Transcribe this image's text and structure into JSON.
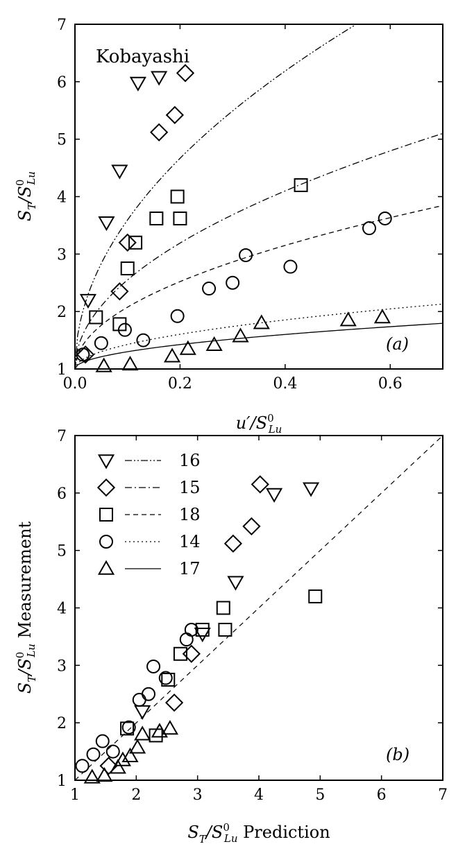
{
  "chart_data": [
    {
      "panel": "(a)",
      "type": "scatter",
      "annotation": "Kobayashi",
      "xlabel": "u′/S⁰Lu",
      "ylabel": "ST/S⁰Lu",
      "xlim": [
        0,
        0.7
      ],
      "ylim": [
        1,
        7
      ],
      "xticks": [
        "0.0",
        "0.2",
        "0.4",
        "0.6"
      ],
      "yticks": [
        "1",
        "2",
        "3",
        "4",
        "5",
        "6",
        "7"
      ],
      "series": [
        {
          "name": "16",
          "marker": "triangle-down",
          "line": "dash-dot-dot",
          "coef": 8.2,
          "points": [
            [
              0.025,
              2.2
            ],
            [
              0.06,
              3.55
            ],
            [
              0.085,
              4.45
            ],
            [
              0.12,
              5.98
            ],
            [
              0.16,
              6.08
            ]
          ]
        },
        {
          "name": "15",
          "marker": "diamond",
          "line": "dash-dot",
          "coef": 4.9,
          "points": [
            [
              0.02,
              1.25
            ],
            [
              0.085,
              2.35
            ],
            [
              0.1,
              3.2
            ],
            [
              0.16,
              5.12
            ],
            [
              0.19,
              5.42
            ],
            [
              0.21,
              6.15
            ]
          ]
        },
        {
          "name": "18",
          "marker": "square",
          "line": "dashed",
          "coef": 3.4,
          "points": [
            [
              0.04,
              1.9
            ],
            [
              0.085,
              1.78
            ],
            [
              0.1,
              2.75
            ],
            [
              0.115,
              3.2
            ],
            [
              0.155,
              3.62
            ],
            [
              0.195,
              4.0
            ],
            [
              0.2,
              3.62
            ],
            [
              0.43,
              4.2
            ]
          ]
        },
        {
          "name": "14",
          "marker": "circle",
          "line": "dotted",
          "coef": 1.35,
          "points": [
            [
              0.015,
              1.25
            ],
            [
              0.05,
              1.45
            ],
            [
              0.095,
              1.68
            ],
            [
              0.13,
              1.5
            ],
            [
              0.195,
              1.92
            ],
            [
              0.255,
              2.4
            ],
            [
              0.3,
              2.5
            ],
            [
              0.325,
              2.98
            ],
            [
              0.41,
              2.78
            ],
            [
              0.56,
              3.45
            ],
            [
              0.59,
              3.62
            ]
          ]
        },
        {
          "name": "17",
          "marker": "triangle-up",
          "line": "solid",
          "coef": 0.95,
          "points": [
            [
              0.055,
              1.05
            ],
            [
              0.105,
              1.08
            ],
            [
              0.185,
              1.22
            ],
            [
              0.215,
              1.35
            ],
            [
              0.265,
              1.42
            ],
            [
              0.315,
              1.57
            ],
            [
              0.355,
              1.8
            ],
            [
              0.52,
              1.85
            ],
            [
              0.585,
              1.9
            ]
          ]
        }
      ]
    },
    {
      "panel": "(b)",
      "type": "scatter",
      "xlabel": "ST/S⁰Lu Prediction",
      "ylabel": "ST/S⁰Lu Measurement",
      "xlim": [
        1,
        7
      ],
      "ylim": [
        1,
        7
      ],
      "xticks": [
        "1",
        "2",
        "3",
        "4",
        "5",
        "6",
        "7"
      ],
      "yticks": [
        "1",
        "2",
        "3",
        "4",
        "5",
        "6",
        "7"
      ],
      "reference_line": "y = x (dashed)",
      "legend_position": "top-left",
      "series": [
        {
          "name": "16",
          "marker": "triangle-down",
          "points": [
            [
              2.1,
              2.2
            ],
            [
              3.08,
              3.55
            ],
            [
              3.62,
              4.45
            ],
            [
              4.25,
              5.98
            ],
            [
              4.85,
              6.08
            ]
          ]
        },
        {
          "name": "15",
          "marker": "diamond",
          "points": [
            [
              1.55,
              1.25
            ],
            [
              2.62,
              2.35
            ],
            [
              2.9,
              3.2
            ],
            [
              3.58,
              5.12
            ],
            [
              3.88,
              5.42
            ],
            [
              4.02,
              6.15
            ]
          ]
        },
        {
          "name": "18",
          "marker": "square",
          "points": [
            [
              1.85,
              1.9
            ],
            [
              2.32,
              1.78
            ],
            [
              2.52,
              2.75
            ],
            [
              2.72,
              3.2
            ],
            [
              3.08,
              3.62
            ],
            [
              3.42,
              4.0
            ],
            [
              3.45,
              3.62
            ],
            [
              4.92,
              4.2
            ]
          ]
        },
        {
          "name": "14",
          "marker": "circle",
          "points": [
            [
              1.12,
              1.25
            ],
            [
              1.3,
              1.45
            ],
            [
              1.45,
              1.68
            ],
            [
              1.62,
              1.5
            ],
            [
              1.88,
              1.92
            ],
            [
              2.05,
              2.4
            ],
            [
              2.2,
              2.5
            ],
            [
              2.28,
              2.98
            ],
            [
              2.48,
              2.78
            ],
            [
              2.82,
              3.45
            ],
            [
              2.9,
              3.62
            ]
          ]
        },
        {
          "name": "17",
          "marker": "triangle-up",
          "points": [
            [
              1.28,
              1.05
            ],
            [
              1.48,
              1.08
            ],
            [
              1.7,
              1.22
            ],
            [
              1.78,
              1.35
            ],
            [
              1.9,
              1.42
            ],
            [
              2.02,
              1.57
            ],
            [
              2.1,
              1.8
            ],
            [
              2.38,
              1.85
            ],
            [
              2.55,
              1.9
            ]
          ]
        }
      ]
    }
  ]
}
